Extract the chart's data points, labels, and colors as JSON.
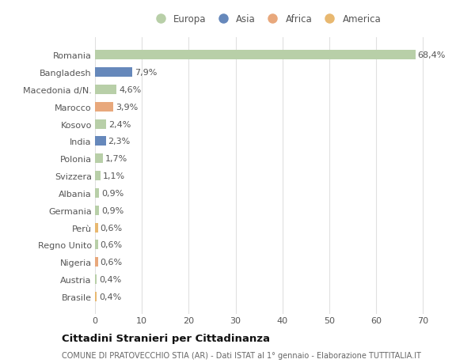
{
  "categories": [
    "Brasile",
    "Austria",
    "Nigeria",
    "Regno Unito",
    "Perù",
    "Germania",
    "Albania",
    "Svizzera",
    "Polonia",
    "India",
    "Kosovo",
    "Marocco",
    "Macedonia d/N.",
    "Bangladesh",
    "Romania"
  ],
  "values": [
    0.4,
    0.4,
    0.6,
    0.6,
    0.6,
    0.9,
    0.9,
    1.1,
    1.7,
    2.3,
    2.4,
    3.9,
    4.6,
    7.9,
    68.4
  ],
  "labels": [
    "0,4%",
    "0,4%",
    "0,6%",
    "0,6%",
    "0,6%",
    "0,9%",
    "0,9%",
    "1,1%",
    "1,7%",
    "2,3%",
    "2,4%",
    "3,9%",
    "4,6%",
    "7,9%",
    "68,4%"
  ],
  "colors": [
    "#e8b870",
    "#b8cfa8",
    "#e8a87c",
    "#b8cfa8",
    "#e8b870",
    "#b8cfa8",
    "#b8cfa8",
    "#b8cfa8",
    "#b8cfa8",
    "#6688bb",
    "#b8cfa8",
    "#e8a87c",
    "#b8cfa8",
    "#6688bb",
    "#b8cfa8"
  ],
  "legend": [
    {
      "label": "Europa",
      "color": "#b8cfa8"
    },
    {
      "label": "Asia",
      "color": "#6688bb"
    },
    {
      "label": "Africa",
      "color": "#e8a87c"
    },
    {
      "label": "America",
      "color": "#e8b870"
    }
  ],
  "title": "Cittadini Stranieri per Cittadinanza",
  "subtitle": "COMUNE DI PRATOVECCHIO STIA (AR) - Dati ISTAT al 1° gennaio - Elaborazione TUTTITALIA.IT",
  "xlim": [
    0,
    73
  ],
  "xticks": [
    0,
    10,
    20,
    30,
    40,
    50,
    60,
    70
  ],
  "bg_color": "#ffffff",
  "grid_color": "#e0e0e0",
  "text_color": "#555555",
  "title_color": "#111111",
  "subtitle_color": "#666666",
  "label_fontsize": 8.0,
  "tick_fontsize": 8.0,
  "bar_height": 0.55
}
